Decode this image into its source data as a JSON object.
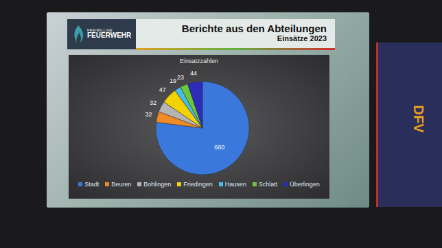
{
  "slide": {
    "logo": [
      "FREIWILLIGE",
      "FEUERWEHR"
    ],
    "heading": "Berichte aus den Abteilungen",
    "subheading": "Einsätze 2023",
    "banner": "DFV"
  },
  "chart_data": {
    "type": "pie",
    "title": "Einsatzzahlen",
    "categories": [
      "Stadt",
      "Beuren",
      "Bohlingen",
      "Friedingen",
      "Hausen",
      "Schlatt",
      "Überlingen"
    ],
    "values": [
      660,
      32,
      32,
      47,
      19,
      23,
      44
    ],
    "colors": [
      "#3a78dc",
      "#f08a24",
      "#b4b4b4",
      "#f2d200",
      "#48bce8",
      "#6cc83a",
      "#2c2cb8"
    ],
    "data_labels": true,
    "legend": "bottom"
  }
}
